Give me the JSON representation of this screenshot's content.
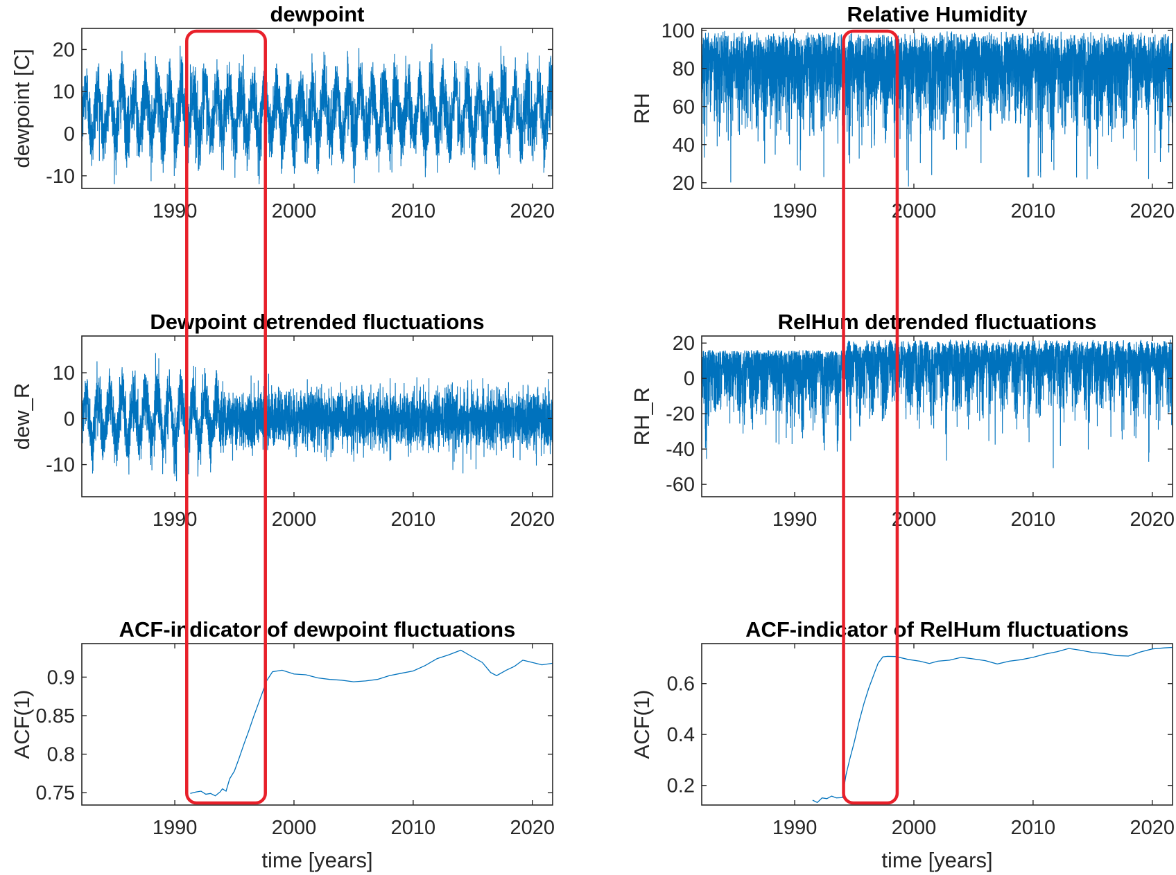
{
  "chart_data": [
    {
      "id": "dewpoint",
      "type": "line",
      "title": "dewpoint",
      "xlabel": "",
      "ylabel": "dewpoint [C]",
      "xlim": [
        1982.2,
        2021.7
      ],
      "ylim": [
        -13,
        25
      ],
      "xticks": [
        1990,
        2000,
        2010,
        2020
      ],
      "xticklabels": [
        "1990",
        "2000",
        "2010",
        "2020"
      ],
      "yticks": [
        -10,
        0,
        10,
        20
      ],
      "yticklabels": [
        "-10",
        "0",
        "10",
        "20"
      ],
      "series": [
        {
          "name": "dewpoint",
          "kind": "daily-seasonal",
          "mean": 5,
          "seasonal_amplitude": 5.5,
          "noise_sd": 3.8,
          "min": -12,
          "max": 24.5,
          "color": "#0072BD"
        }
      ]
    },
    {
      "id": "relative-humidity",
      "type": "line",
      "title": "Relative Humidity",
      "xlabel": "",
      "ylabel": "RH",
      "xlim": [
        1982.2,
        2021.7
      ],
      "ylim": [
        17,
        101
      ],
      "xticks": [
        1990,
        2000,
        2010,
        2020
      ],
      "xticklabels": [
        "1990",
        "2000",
        "2010",
        "2020"
      ],
      "yticks": [
        20,
        40,
        60,
        80,
        100
      ],
      "yticklabels": [
        "20",
        "40",
        "60",
        "80",
        "100"
      ],
      "series": [
        {
          "name": "RH",
          "kind": "daily-seasonal",
          "mean": 84,
          "seasonal_amplitude": 8,
          "noise_sd": 9,
          "min": 18,
          "max": 100,
          "color": "#0072BD"
        }
      ]
    },
    {
      "id": "dewpoint-detrended",
      "type": "line",
      "title": "Dewpoint detrended fluctuations",
      "xlabel": "",
      "ylabel": "dew_R",
      "xlim": [
        1982.2,
        2021.7
      ],
      "ylim": [
        -17,
        18
      ],
      "xticks": [
        1990,
        2000,
        2010,
        2020
      ],
      "xticklabels": [
        "1990",
        "2000",
        "2010",
        "2020"
      ],
      "yticks": [
        -10,
        0,
        10
      ],
      "yticklabels": [
        "-10",
        "0",
        "10"
      ],
      "series": [
        {
          "name": "dew_R",
          "kind": "detrended",
          "regime_change_year": 1993.7,
          "seasonal_amplitude_before": 5,
          "noise_sd_before": 3,
          "noise_sd_after": 3,
          "min": -16,
          "max": 16.5,
          "color": "#0072BD"
        }
      ]
    },
    {
      "id": "relhum-detrended",
      "type": "line",
      "title": "RelHum detrended fluctuations",
      "xlabel": "",
      "ylabel": "RH_R",
      "xlim": [
        1982.2,
        2021.7
      ],
      "ylim": [
        -67,
        24
      ],
      "xticks": [
        1990,
        2000,
        2010,
        2020
      ],
      "xticklabels": [
        "1990",
        "2000",
        "2010",
        "2020"
      ],
      "yticks": [
        -60,
        -40,
        -20,
        0,
        20
      ],
      "yticklabels": [
        "-60",
        "-40",
        "-20",
        "0",
        "20"
      ],
      "series": [
        {
          "name": "RH_R",
          "kind": "detrended-rh",
          "regime_change_year": 1994.3,
          "upper_before": 16,
          "upper_after": 22,
          "noise_sd": 9,
          "min": -66,
          "max": 23,
          "color": "#0072BD"
        }
      ]
    },
    {
      "id": "acf-dewpoint",
      "type": "line",
      "title": "ACF-indicator of dewpoint fluctuations",
      "xlabel": "time [years]",
      "ylabel": "ACF(1)",
      "xlim": [
        1982.2,
        2021.7
      ],
      "ylim": [
        0.734,
        0.9435
      ],
      "xticks": [
        1990,
        2000,
        2010,
        2020
      ],
      "xticklabels": [
        "1990",
        "2000",
        "2010",
        "2020"
      ],
      "yticks": [
        0.75,
        0.8,
        0.85,
        0.9
      ],
      "yticklabels": [
        "0.75",
        "0.8",
        "0.85",
        "0.9"
      ],
      "series": [
        {
          "name": "ACF(1) dewpoint",
          "x": [
            1991.3,
            1991.8,
            1992.2,
            1992.6,
            1993.0,
            1993.4,
            1993.8,
            1994.0,
            1994.3,
            1994.6,
            1995.0,
            1995.4,
            1995.8,
            1996.2,
            1996.6,
            1997.0,
            1997.4,
            1997.7,
            1998.2,
            1999.0,
            2000.0,
            2001.0,
            2002.0,
            2003.0,
            2004.0,
            2005.0,
            2006.0,
            2007.0,
            2008.0,
            2009.0,
            2010.0,
            2011.0,
            2012.0,
            2013.0,
            2014.0,
            2015.0,
            2015.8,
            2016.5,
            2017.0,
            2017.8,
            2018.5,
            2019.2,
            2020.0,
            2020.8,
            2021.7
          ],
          "y": [
            0.749,
            0.751,
            0.752,
            0.748,
            0.749,
            0.746,
            0.751,
            0.755,
            0.752,
            0.768,
            0.778,
            0.795,
            0.813,
            0.83,
            0.848,
            0.865,
            0.882,
            0.895,
            0.907,
            0.909,
            0.904,
            0.903,
            0.899,
            0.897,
            0.896,
            0.894,
            0.895,
            0.897,
            0.902,
            0.905,
            0.908,
            0.915,
            0.924,
            0.929,
            0.935,
            0.926,
            0.919,
            0.906,
            0.902,
            0.909,
            0.914,
            0.922,
            0.919,
            0.916,
            0.918
          ],
          "color": "#0072BD"
        }
      ]
    },
    {
      "id": "acf-relhum",
      "type": "line",
      "title": "ACF-indicator of RelHum fluctuations",
      "xlabel": "time [years]",
      "ylabel": "ACF(1)",
      "xlim": [
        1982.2,
        2021.7
      ],
      "ylim": [
        0.123,
        0.757
      ],
      "xticks": [
        1990,
        2000,
        2010,
        2020
      ],
      "xticklabels": [
        "1990",
        "2000",
        "2010",
        "2020"
      ],
      "yticks": [
        0.2,
        0.4,
        0.6
      ],
      "yticklabels": [
        "0.2",
        "0.4",
        "0.6"
      ],
      "series": [
        {
          "name": "ACF(1) RH",
          "x": [
            1991.5,
            1991.9,
            1992.3,
            1992.7,
            1993.1,
            1993.5,
            1994.0,
            1994.3,
            1994.6,
            1995.0,
            1995.4,
            1995.8,
            1996.2,
            1996.6,
            1997.0,
            1997.4,
            1997.8,
            1998.5,
            1999.5,
            2000.5,
            2001.3,
            2002.0,
            2003.0,
            2004.0,
            2005.0,
            2006.0,
            2007.0,
            2008.0,
            2009.0,
            2010.0,
            2011.0,
            2012.0,
            2013.0,
            2014.0,
            2015.0,
            2016.0,
            2017.0,
            2018.0,
            2019.0,
            2020.0,
            2021.0,
            2021.7
          ],
          "y": [
            0.142,
            0.133,
            0.151,
            0.148,
            0.158,
            0.151,
            0.152,
            0.24,
            0.3,
            0.37,
            0.45,
            0.52,
            0.58,
            0.63,
            0.68,
            0.705,
            0.707,
            0.706,
            0.695,
            0.688,
            0.679,
            0.688,
            0.692,
            0.703,
            0.697,
            0.69,
            0.677,
            0.688,
            0.694,
            0.703,
            0.716,
            0.725,
            0.738,
            0.731,
            0.722,
            0.718,
            0.71,
            0.708,
            0.724,
            0.736,
            0.74,
            0.742
          ],
          "color": "#0072BD"
        }
      ]
    }
  ],
  "highlights": [
    {
      "name": "dewpoint-transition-window",
      "panels": "left-column",
      "x_range_years": [
        1991.0,
        1997.6
      ],
      "color": "#E8202A"
    },
    {
      "name": "relhum-transition-window",
      "panels": "right-column",
      "x_range_years": [
        1994.1,
        1998.6
      ],
      "color": "#E8202A"
    }
  ]
}
